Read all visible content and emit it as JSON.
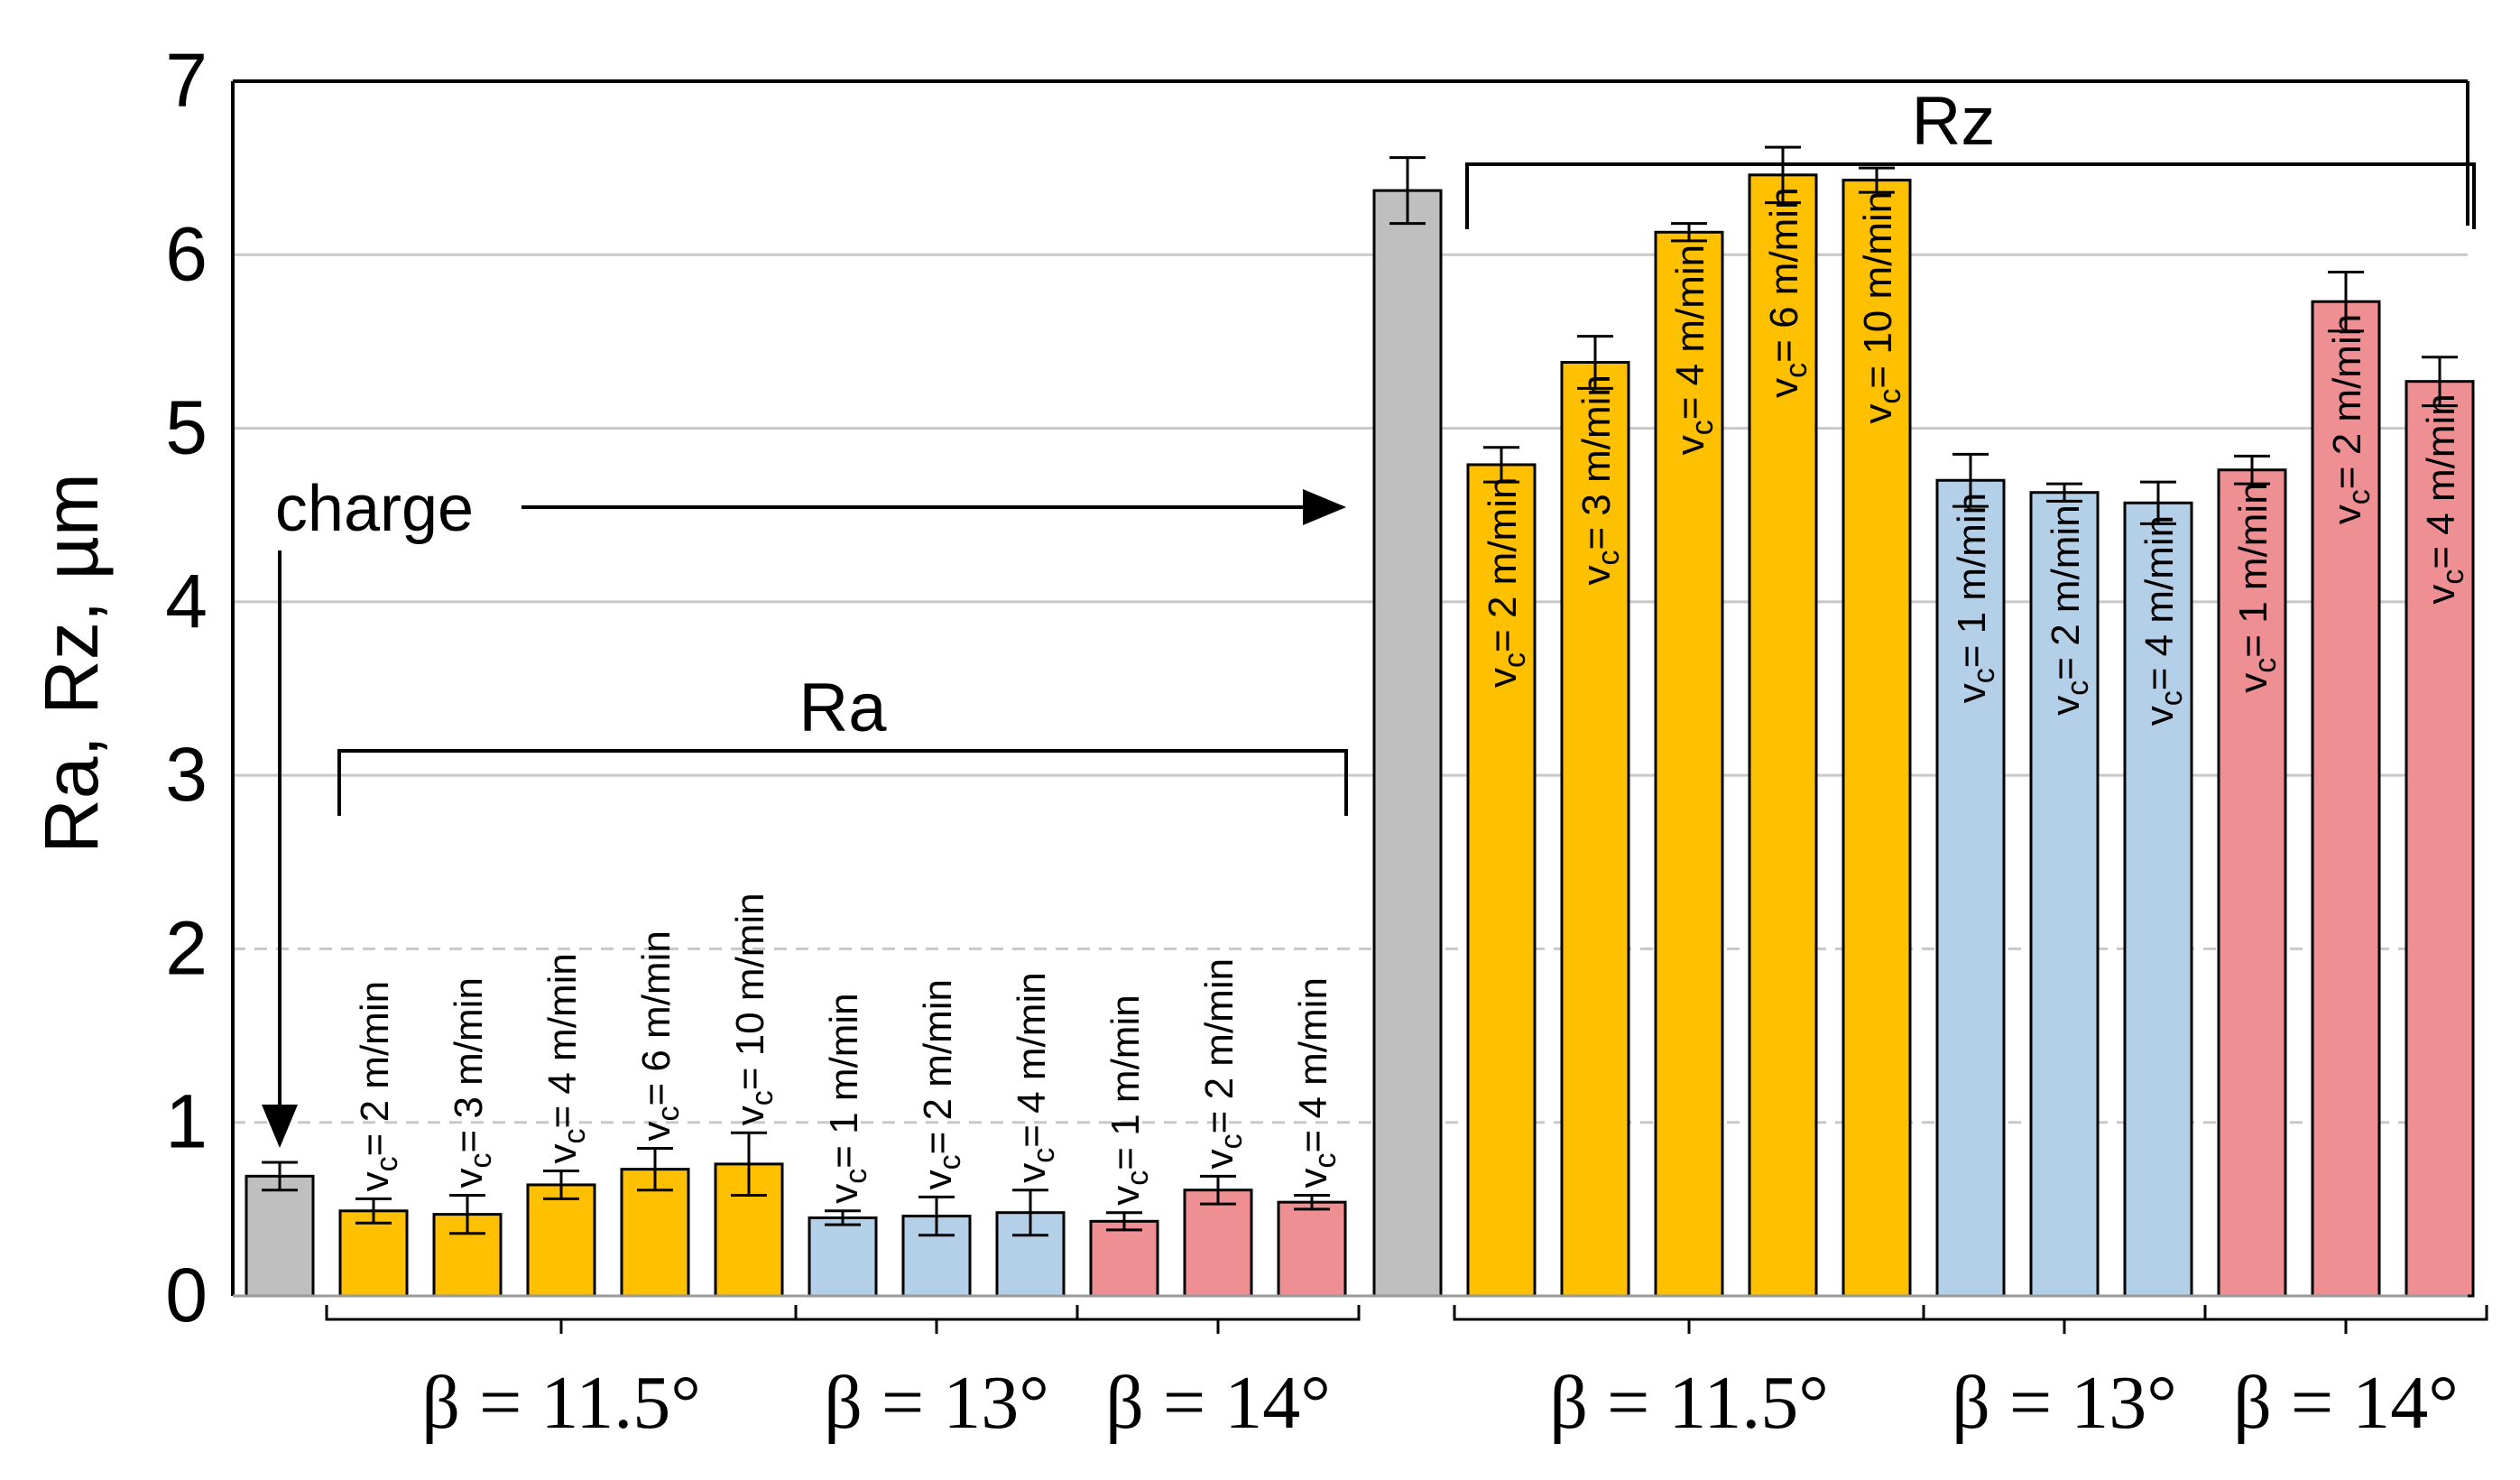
{
  "colors": {
    "charge": "#BFBFBF",
    "beta_11_5": "#FFC000",
    "beta_13": "#B4CFE8",
    "beta_14": "#EE9093",
    "grid": "#C8C8C8",
    "axis": "#000000"
  },
  "chart_data": {
    "type": "bar",
    "title": "",
    "xlabel": "",
    "ylabel": "Ra, Rz, µm",
    "ylim": [
      0,
      7
    ],
    "yticks": [
      "0",
      "1",
      "2",
      "3",
      "4",
      "5",
      "6",
      "7"
    ],
    "grid": "horizontal",
    "bar_label_prefix_main": "v",
    "bar_label_prefix_sub": "c",
    "series": [
      {
        "name": "Ra",
        "bracket_label": "Ra",
        "charge": {
          "label": "charge",
          "value": 0.69,
          "error": 0.08
        },
        "groups": [
          {
            "label": "β = 11.5°",
            "color_key": "beta_11_5",
            "bars": [
              {
                "label": "= 2 m/min",
                "value": 0.49,
                "error": 0.07
              },
              {
                "label": "= 3 m/min",
                "value": 0.47,
                "error": 0.11
              },
              {
                "label": "= 4 m/min",
                "value": 0.64,
                "error": 0.08
              },
              {
                "label": "= 6 m/min",
                "value": 0.73,
                "error": 0.12
              },
              {
                "label": "= 10 m/min",
                "value": 0.76,
                "error": 0.18
              }
            ]
          },
          {
            "label": "β = 13°",
            "color_key": "beta_13",
            "bars": [
              {
                "label": "= 1 m/min",
                "value": 0.45,
                "error": 0.04
              },
              {
                "label": "= 2 m/min",
                "value": 0.46,
                "error": 0.11
              },
              {
                "label": "= 4 m/min",
                "value": 0.48,
                "error": 0.13
              }
            ]
          },
          {
            "label": "β = 14°",
            "color_key": "beta_14",
            "bars": [
              {
                "label": "= 1 m/min",
                "value": 0.43,
                "error": 0.05
              },
              {
                "label": "= 2 m/min",
                "value": 0.61,
                "error": 0.08
              },
              {
                "label": "= 4 m/min",
                "value": 0.54,
                "error": 0.04
              }
            ]
          }
        ]
      },
      {
        "name": "Rz",
        "bracket_label": "Rz",
        "charge": {
          "label": "charge",
          "value": 6.37,
          "error": 0.19
        },
        "groups": [
          {
            "label": "β = 11.5°",
            "color_key": "beta_11_5",
            "bars": [
              {
                "label": "= 2 m/min",
                "value": 4.79,
                "error": 0.1
              },
              {
                "label": "= 3 m/min",
                "value": 5.38,
                "error": 0.15
              },
              {
                "label": "= 4 m/min",
                "value": 6.13,
                "error": 0.05
              },
              {
                "label": "= 6 m/min",
                "value": 6.46,
                "error": 0.16
              },
              {
                "label": "= 10 m/min",
                "value": 6.43,
                "error": 0.07
              }
            ]
          },
          {
            "label": "β = 13°",
            "color_key": "beta_13",
            "bars": [
              {
                "label": "= 1 m/min",
                "value": 4.7,
                "error": 0.15
              },
              {
                "label": "= 2 m/min",
                "value": 4.63,
                "error": 0.05
              },
              {
                "label": "= 4 m/min",
                "value": 4.57,
                "error": 0.12
              }
            ]
          },
          {
            "label": "β = 14°",
            "color_key": "beta_14",
            "bars": [
              {
                "label": "= 1 m/min",
                "value": 4.76,
                "error": 0.08
              },
              {
                "label": "= 2 m/min",
                "value": 5.73,
                "error": 0.17
              },
              {
                "label": "= 4 m/min",
                "value": 5.27,
                "error": 0.14
              }
            ]
          }
        ]
      }
    ],
    "annotations": [
      {
        "text": "charge",
        "type": "arrow-label"
      }
    ]
  }
}
